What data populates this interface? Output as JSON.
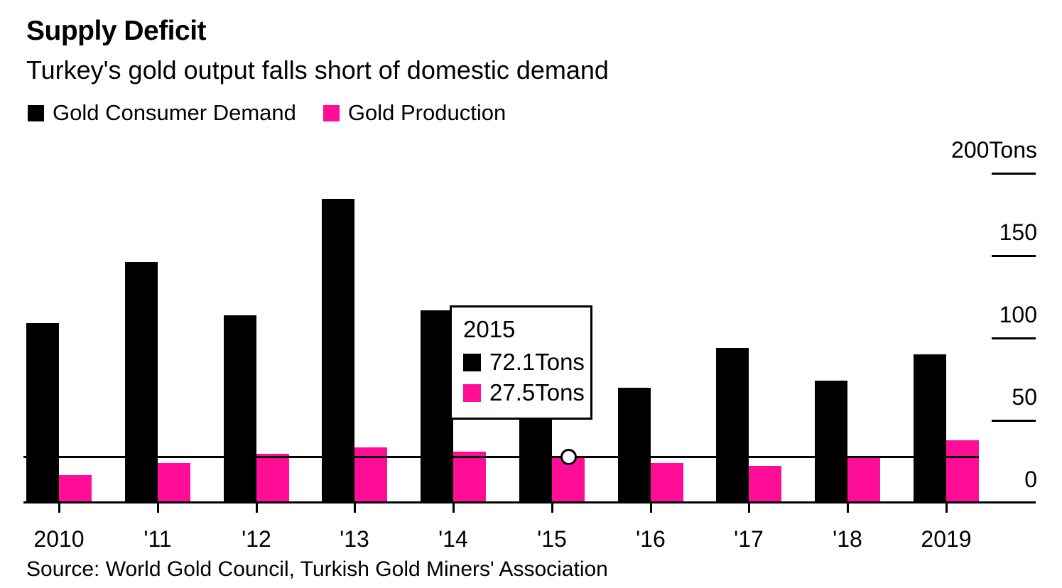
{
  "header": {
    "title": "Supply Deficit",
    "subtitle": "Turkey's gold output falls short of domestic demand"
  },
  "legend": [
    {
      "label": "Gold Consumer Demand",
      "color": "#000000"
    },
    {
      "label": "Gold Production",
      "color": "#ff0d96"
    }
  ],
  "tooltip": {
    "year": "2015",
    "rows": [
      {
        "value": "72.1Tons",
        "color": "#000000"
      },
      {
        "value": "27.5Tons",
        "color": "#ff0d96"
      }
    ]
  },
  "source": "Source: World Gold Council, Turkish Gold Miners' Association",
  "colors": {
    "demand": "#000000",
    "production": "#ff0d96",
    "background": "#ffffff",
    "axis": "#000000"
  },
  "chart_data": {
    "type": "bar",
    "title": "Supply Deficit",
    "subtitle": "Turkey's gold output falls short of domestic demand",
    "unit": "Tons",
    "categories": [
      "2010",
      "'11",
      "'12",
      "'13",
      "'14",
      "'15",
      "'16",
      "'17",
      "'18",
      "2019"
    ],
    "series": [
      {
        "name": "Gold Consumer Demand",
        "color": "#000000",
        "values": [
          109,
          146,
          114,
          184.5,
          117,
          72.1,
          70,
          94,
          74,
          90
        ]
      },
      {
        "name": "Gold Production",
        "color": "#ff0d96",
        "values": [
          16.6,
          24.2,
          29.6,
          33.5,
          31,
          27.5,
          24.2,
          22.5,
          27.1,
          38
        ]
      }
    ],
    "ylim": [
      0,
      200
    ],
    "y_ticks": [
      {
        "value": 200,
        "label": "200Tons"
      },
      {
        "value": 150,
        "label": "150"
      },
      {
        "value": 100,
        "label": "100"
      },
      {
        "value": 50,
        "label": "50"
      },
      {
        "value": 0,
        "label": "0"
      }
    ],
    "grid": "right-ticks-only",
    "legend_position": "top-left",
    "highlight": {
      "category": "'15",
      "year_label": "2015",
      "series": "Gold Production",
      "value": 27.5
    }
  }
}
